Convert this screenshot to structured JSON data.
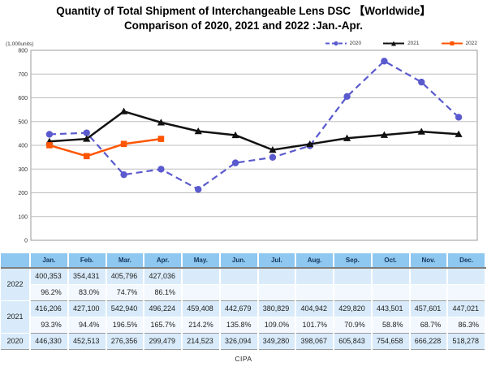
{
  "title": {
    "line1": "Quantity of Total Shipment of Interchangeable Lens DSC 【Worldwide】",
    "line2": "Comparison of 2020, 2021 and 2022 :Jan.-Apr."
  },
  "chart_data": {
    "type": "line",
    "units_label": "(1,000units)",
    "categories": [
      "Jan.",
      "Feb.",
      "Mar.",
      "Apr.",
      "May.",
      "Jun.",
      "Jul.",
      "Aug.",
      "Sep.",
      "Oct.",
      "Nov.",
      "Dec."
    ],
    "ylim": [
      0,
      800
    ],
    "ytick_step": 100,
    "grid": true,
    "legend_position": "top-right",
    "series": [
      {
        "name": "2020",
        "color": "#5a5ace",
        "style": "dashed",
        "marker": "circle",
        "values": [
          446.33,
          452.513,
          276.356,
          299.479,
          214.523,
          326.094,
          349.28,
          398.067,
          605.843,
          754.658,
          666.228,
          518.278
        ]
      },
      {
        "name": "2021",
        "color": "#111111",
        "style": "solid",
        "marker": "triangle",
        "values": [
          416.206,
          427.1,
          542.94,
          496.224,
          459.408,
          442.679,
          380.829,
          404.942,
          429.82,
          443.501,
          457.601,
          447.021
        ]
      },
      {
        "name": "2022",
        "color": "#ff5400",
        "style": "solid",
        "marker": "square",
        "values": [
          400.353,
          354.431,
          405.796,
          427.036
        ]
      }
    ]
  },
  "table": {
    "columns": [
      "Jan.",
      "Feb.",
      "Mar.",
      "Apr.",
      "May.",
      "Jun.",
      "Jul.",
      "Aug.",
      "Sep.",
      "Oct.",
      "Nov.",
      "Dec."
    ],
    "groups": [
      {
        "year": "2022",
        "values": [
          "400,353",
          "354,431",
          "405,796",
          "427,036",
          "",
          "",
          "",
          "",
          "",
          "",
          "",
          ""
        ],
        "pct": [
          "96.2%",
          "83.0%",
          "74.7%",
          "86.1%",
          "",
          "",
          "",
          "",
          "",
          "",
          "",
          ""
        ]
      },
      {
        "year": "2021",
        "values": [
          "416,206",
          "427,100",
          "542,940",
          "496,224",
          "459,408",
          "442,679",
          "380,829",
          "404,942",
          "429,820",
          "443,501",
          "457,601",
          "447,021"
        ],
        "pct": [
          "93.3%",
          "94.4%",
          "196.5%",
          "165.7%",
          "214.2%",
          "135.8%",
          "109.0%",
          "101.7%",
          "70.9%",
          "58.8%",
          "68.7%",
          "86.3%"
        ]
      },
      {
        "year": "2020",
        "values": [
          "446,330",
          "452,513",
          "276,356",
          "299,479",
          "214,523",
          "326,094",
          "349,280",
          "398,067",
          "605,843",
          "754,658",
          "666,228",
          "518,278"
        ],
        "pct": null
      }
    ]
  },
  "footer": {
    "source": "CIPA"
  },
  "colors": {
    "table_header_bg": "#8ec7ef",
    "table_value_row_bg": "#d9ebfa",
    "table_pct_row_bg": "#f2f8fe",
    "table_year_cell_bg": "#e3f1fb",
    "grid_line": "#bdbdbd",
    "plot_border": "#9a9a9a"
  }
}
